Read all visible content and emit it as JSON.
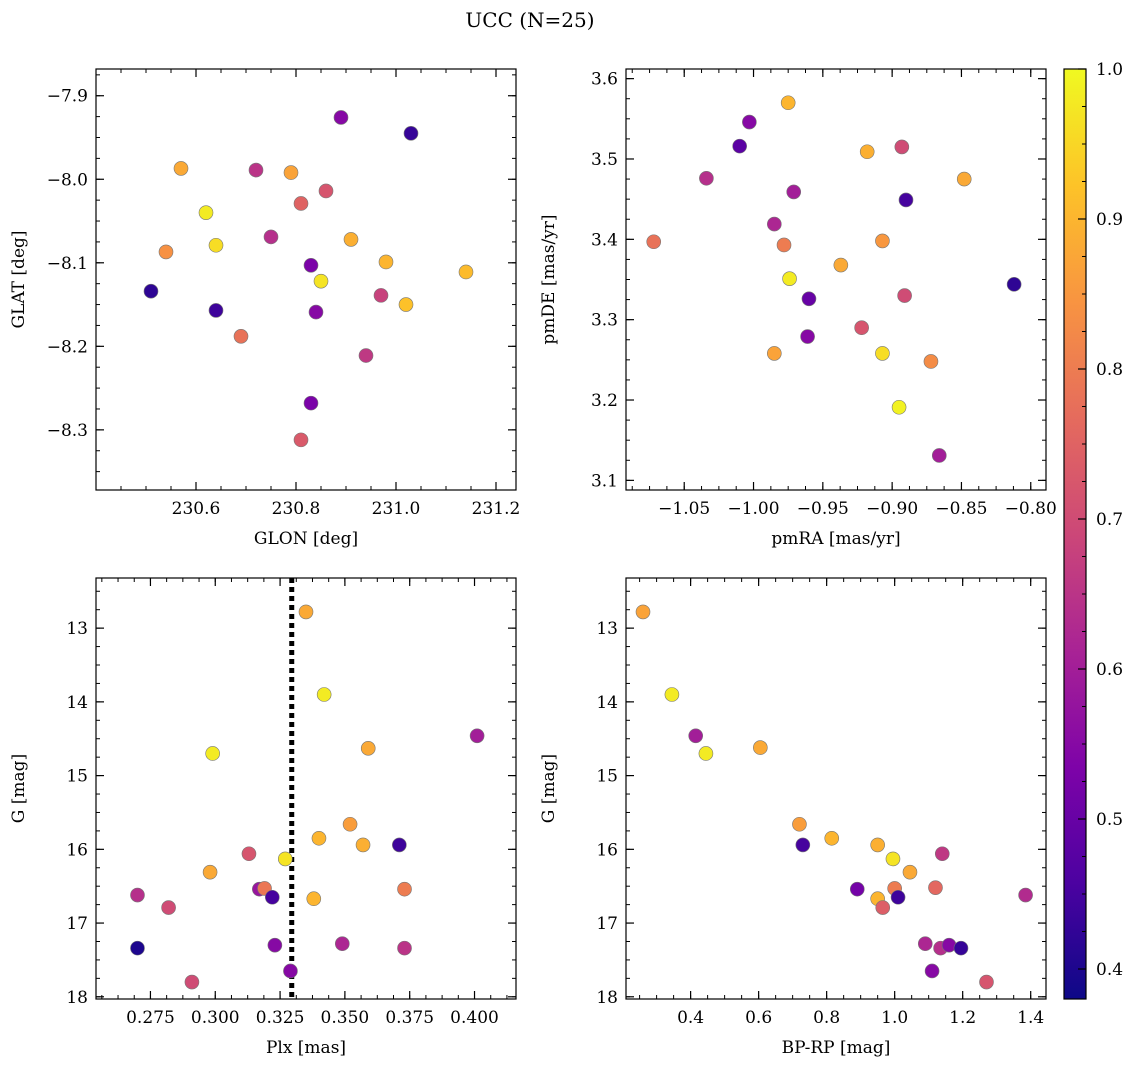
{
  "figure": {
    "title": "UCC (N=25)"
  },
  "colormap": {
    "name": "plasma",
    "min": 0.38,
    "max": 1.0,
    "ticks": [
      "0.4",
      "0.5",
      "0.6",
      "0.7",
      "0.8",
      "0.9",
      "1.0"
    ],
    "tick_values": [
      0.4,
      0.5,
      0.6,
      0.7,
      0.8,
      0.9,
      1.0
    ]
  },
  "chart_data": [
    {
      "type": "scatter",
      "xlabel": "GLON [deg]",
      "ylabel": "GLAT [deg]",
      "xlim": [
        230.4,
        231.24
      ],
      "ylim": [
        -8.372,
        -7.868
      ],
      "xticks": [
        230.6,
        230.8,
        231.0,
        231.2
      ],
      "xtick_labels": [
        "230.6",
        "230.8",
        "231.0",
        "231.2"
      ],
      "yticks": [
        -7.9,
        -8.0,
        -8.1,
        -8.2,
        -8.3
      ],
      "ytick_labels": [
        "−7.9",
        "−8.0",
        "−8.1",
        "−8.2",
        "−8.3"
      ],
      "x": [
        230.89,
        231.03,
        230.57,
        230.72,
        230.79,
        230.86,
        230.81,
        230.62,
        230.75,
        230.64,
        230.54,
        230.91,
        230.98,
        230.83,
        231.14,
        230.85,
        230.51,
        230.64,
        230.97,
        231.02,
        230.84,
        230.69,
        230.94,
        230.83,
        230.81
      ],
      "y": [
        -7.926,
        -7.945,
        -7.987,
        -7.989,
        -7.992,
        -8.014,
        -8.029,
        -8.04,
        -8.069,
        -8.079,
        -8.087,
        -8.072,
        -8.099,
        -8.103,
        -8.111,
        -8.122,
        -8.134,
        -8.157,
        -8.139,
        -8.15,
        -8.159,
        -8.188,
        -8.211,
        -8.268,
        -8.312
      ],
      "c": [
        0.55,
        0.43,
        0.88,
        0.65,
        0.87,
        0.72,
        0.75,
        0.98,
        0.64,
        0.96,
        0.84,
        0.89,
        0.9,
        0.53,
        0.91,
        0.97,
        0.42,
        0.44,
        0.68,
        0.92,
        0.55,
        0.78,
        0.66,
        0.53,
        0.73
      ]
    },
    {
      "type": "scatter",
      "xlabel": "pmRA [mas/yr]",
      "ylabel": "pmDE [mas/yr]",
      "xlim": [
        -1.092,
        -0.789
      ],
      "ylim": [
        3.088,
        3.612
      ],
      "xticks": [
        -1.05,
        -1.0,
        -0.95,
        -0.9,
        -0.85,
        -0.8
      ],
      "xtick_labels": [
        "−1.05",
        "−1.00",
        "−0.95",
        "−0.90",
        "−0.85",
        "−0.80"
      ],
      "yticks": [
        3.1,
        3.2,
        3.3,
        3.4,
        3.5,
        3.6
      ],
      "ytick_labels": [
        "3.1",
        "3.2",
        "3.3",
        "3.4",
        "3.5",
        "3.6"
      ],
      "x": [
        -0.975,
        -1.003,
        -1.01,
        -0.918,
        -0.893,
        -1.034,
        -0.848,
        -0.971,
        -0.89,
        -0.985,
        -1.072,
        -0.978,
        -0.907,
        -0.937,
        -0.974,
        -0.812,
        -0.96,
        -0.891,
        -0.922,
        -0.961,
        -0.985,
        -0.907,
        -0.872,
        -0.895,
        -0.866
      ],
      "y": [
        3.57,
        3.546,
        3.516,
        3.509,
        3.515,
        3.476,
        3.475,
        3.459,
        3.449,
        3.419,
        3.397,
        3.393,
        3.398,
        3.368,
        3.351,
        3.344,
        3.326,
        3.33,
        3.29,
        3.279,
        3.258,
        3.258,
        3.248,
        3.191,
        3.131
      ],
      "c": [
        0.9,
        0.55,
        0.48,
        0.89,
        0.7,
        0.64,
        0.88,
        0.6,
        0.45,
        0.62,
        0.78,
        0.8,
        0.85,
        0.88,
        0.98,
        0.42,
        0.5,
        0.7,
        0.72,
        0.55,
        0.87,
        0.96,
        0.83,
        0.99,
        0.6
      ]
    },
    {
      "type": "scatter",
      "xlabel": "Plx [mas]",
      "ylabel": "G [mag]",
      "xlim": [
        0.254,
        0.416
      ],
      "ylim": [
        18.03,
        12.32
      ],
      "y_inverted": true,
      "xticks": [
        0.275,
        0.3,
        0.325,
        0.35,
        0.375,
        0.4
      ],
      "xtick_labels": [
        "0.275",
        "0.300",
        "0.325",
        "0.350",
        "0.375",
        "0.400"
      ],
      "yticks": [
        13,
        14,
        15,
        16,
        17,
        18
      ],
      "ytick_labels": [
        "13",
        "14",
        "15",
        "16",
        "17",
        "18"
      ],
      "vline": {
        "x": 0.3295,
        "style": "dotted"
      },
      "x": [
        0.335,
        0.342,
        0.401,
        0.299,
        0.359,
        0.352,
        0.34,
        0.357,
        0.371,
        0.313,
        0.327,
        0.298,
        0.338,
        0.27,
        0.317,
        0.319,
        0.322,
        0.373,
        0.282,
        0.27,
        0.323,
        0.349,
        0.373,
        0.291,
        0.329
      ],
      "y": [
        12.78,
        13.9,
        14.46,
        14.7,
        14.63,
        15.66,
        15.85,
        15.94,
        15.94,
        16.06,
        16.13,
        16.31,
        16.67,
        16.62,
        16.54,
        16.53,
        16.65,
        16.54,
        16.79,
        17.34,
        17.3,
        17.28,
        17.34,
        17.8,
        17.65
      ],
      "c": [
        0.88,
        0.98,
        0.6,
        0.98,
        0.88,
        0.86,
        0.9,
        0.89,
        0.44,
        0.72,
        0.97,
        0.88,
        0.9,
        0.64,
        0.58,
        0.79,
        0.45,
        0.8,
        0.7,
        0.4,
        0.55,
        0.62,
        0.65,
        0.7,
        0.55
      ]
    },
    {
      "type": "scatter",
      "xlabel": "BP-RP [mag]",
      "ylabel": "G [mag]",
      "xlim": [
        0.21,
        1.445
      ],
      "ylim": [
        18.03,
        12.32
      ],
      "y_inverted": true,
      "xticks": [
        0.4,
        0.6,
        0.8,
        1.0,
        1.2,
        1.4
      ],
      "xtick_labels": [
        "0.4",
        "0.6",
        "0.8",
        "1.0",
        "1.2",
        "1.4"
      ],
      "yticks": [
        13,
        14,
        15,
        16,
        17,
        18
      ],
      "ytick_labels": [
        "13",
        "14",
        "15",
        "16",
        "17",
        "18"
      ],
      "x": [
        0.26,
        0.345,
        0.415,
        0.445,
        0.605,
        0.72,
        0.73,
        0.815,
        0.95,
        0.995,
        1.14,
        1.045,
        0.89,
        0.95,
        1.0,
        1.12,
        1.01,
        1.385,
        0.965,
        1.09,
        1.135,
        1.16,
        1.195,
        1.11,
        1.27
      ],
      "y": [
        12.78,
        13.9,
        14.46,
        14.7,
        14.62,
        15.66,
        15.94,
        15.85,
        15.94,
        16.13,
        16.06,
        16.31,
        16.54,
        16.67,
        16.53,
        16.52,
        16.65,
        16.62,
        16.79,
        17.28,
        17.34,
        17.3,
        17.34,
        17.65,
        17.8
      ],
      "c": [
        0.87,
        0.98,
        0.6,
        0.98,
        0.88,
        0.86,
        0.45,
        0.9,
        0.89,
        0.97,
        0.66,
        0.88,
        0.52,
        0.9,
        0.8,
        0.76,
        0.44,
        0.63,
        0.74,
        0.62,
        0.64,
        0.55,
        0.43,
        0.55,
        0.72
      ]
    }
  ]
}
